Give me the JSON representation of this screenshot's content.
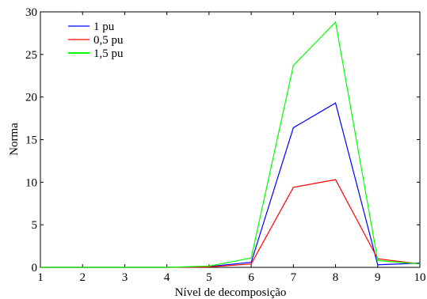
{
  "chart_data": {
    "type": "line",
    "title": "",
    "xlabel": "Nível de decomposição",
    "ylabel": "Norma",
    "xlim": [
      1,
      10
    ],
    "ylim": [
      0,
      30
    ],
    "xticks": [
      "1",
      "2",
      "3",
      "4",
      "5",
      "6",
      "7",
      "8",
      "9",
      "10"
    ],
    "yticks": [
      "0",
      "5",
      "10",
      "15",
      "20",
      "25",
      "30"
    ],
    "grid": false,
    "legend_position": "top-left",
    "x": [
      1,
      2,
      3,
      4,
      5,
      6,
      7,
      8,
      9,
      10
    ],
    "series": [
      {
        "name": "1 pu",
        "color": "#0000ff",
        "values": [
          0,
          0,
          0,
          0,
          0.1,
          0.6,
          16.4,
          19.3,
          0.3,
          0.5
        ]
      },
      {
        "name": "0,5 pu",
        "color": "#ff0000",
        "values": [
          0,
          0,
          0,
          0,
          0.05,
          0.4,
          9.4,
          10.3,
          1.0,
          0.4
        ]
      },
      {
        "name": "1,5 pu",
        "color": "#00ff00",
        "values": [
          0,
          0,
          0,
          0,
          0.15,
          1.1,
          23.7,
          28.8,
          0.8,
          0.4
        ]
      }
    ]
  }
}
